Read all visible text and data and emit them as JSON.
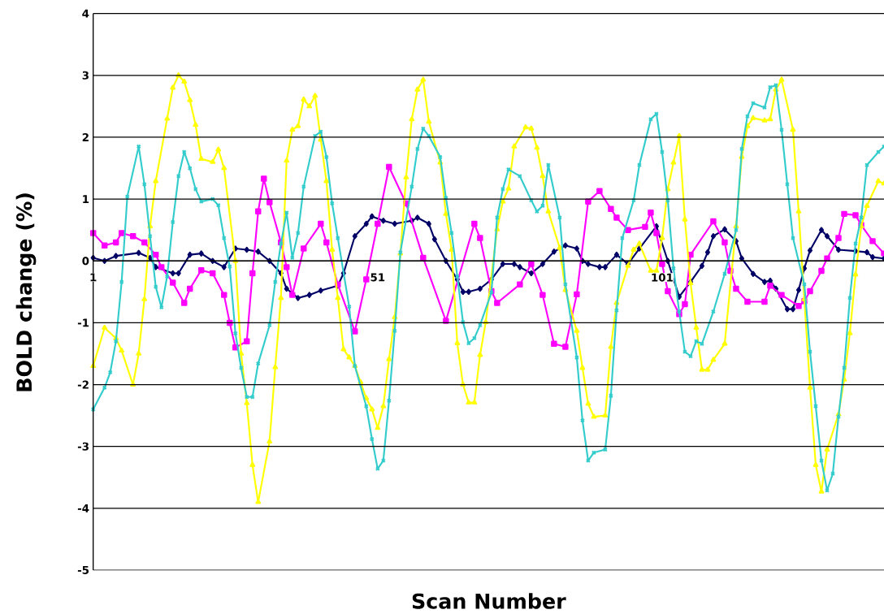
{
  "chart_data": {
    "type": "line",
    "xlabel": "Scan Number",
    "ylabel": "BOLD change (%)",
    "xlim": [
      1,
      140
    ],
    "xticks": [
      1,
      51,
      101
    ],
    "ylim": [
      -5,
      4
    ],
    "yticks": [
      -5,
      -4,
      -3,
      -2,
      -1,
      0,
      1,
      2,
      3,
      4
    ],
    "grid": "y",
    "series": [
      {
        "color": "#000066",
        "marker": "diamond",
        "x": [
          1,
          3,
          5,
          9,
          11,
          12,
          15,
          16,
          18,
          20,
          22,
          24,
          26,
          28,
          30,
          32,
          34,
          35,
          37,
          39,
          41,
          44,
          45,
          47,
          49,
          50,
          52,
          54,
          57,
          58,
          60,
          61,
          63,
          65,
          66,
          67,
          69,
          71,
          73,
          75,
          76,
          78,
          80,
          82,
          84,
          86,
          87,
          88,
          90,
          91,
          93,
          95,
          97,
          100,
          102,
          104,
          106,
          108,
          109,
          110,
          112,
          114,
          115,
          117,
          119,
          120,
          121,
          123,
          124,
          125,
          126,
          127,
          129,
          130,
          132,
          135,
          137,
          138,
          140
        ],
        "values": [
          0.05,
          0.0,
          0.08,
          0.13,
          0.05,
          -0.1,
          -0.2,
          -0.2,
          0.1,
          0.12,
          0.0,
          -0.1,
          0.2,
          0.18,
          0.15,
          0.0,
          -0.2,
          -0.45,
          -0.6,
          -0.55,
          -0.48,
          -0.4,
          -0.2,
          0.4,
          0.6,
          0.72,
          0.65,
          0.6,
          0.65,
          0.7,
          0.6,
          0.35,
          0.0,
          -0.3,
          -0.5,
          -0.5,
          -0.45,
          -0.3,
          -0.05,
          -0.05,
          -0.1,
          -0.2,
          -0.05,
          0.15,
          0.25,
          0.2,
          0.0,
          -0.05,
          -0.1,
          -0.1,
          0.1,
          -0.05,
          0.2,
          0.56,
          0.0,
          -0.58,
          -0.34,
          -0.08,
          0.14,
          0.4,
          0.51,
          0.32,
          0.04,
          -0.21,
          -0.34,
          -0.32,
          -0.45,
          -0.78,
          -0.78,
          -0.47,
          -0.12,
          0.17,
          0.5,
          0.4,
          0.18,
          0.16,
          0.14,
          0.06,
          0.04
        ]
      },
      {
        "color": "#ff00ff",
        "marker": "square",
        "x": [
          1,
          3,
          5,
          6,
          8,
          10,
          12,
          13,
          15,
          17,
          18,
          20,
          22,
          24,
          25,
          26,
          28,
          29,
          30,
          31,
          32,
          34,
          35,
          36,
          38,
          41,
          42,
          44,
          47,
          49,
          51,
          53,
          56,
          59,
          63,
          68,
          69,
          71,
          72,
          76,
          78,
          80,
          82,
          84,
          86,
          88,
          90,
          92,
          93,
          95,
          98,
          99,
          100,
          101,
          102,
          104,
          105,
          106,
          110,
          112,
          113,
          114,
          116,
          119,
          120,
          122,
          125,
          126,
          127,
          129,
          130,
          132,
          133,
          135,
          136,
          138,
          140
        ],
        "values": [
          0.45,
          0.25,
          0.3,
          0.45,
          0.4,
          0.3,
          0.1,
          -0.1,
          -0.35,
          -0.68,
          -0.45,
          -0.15,
          -0.2,
          -0.55,
          -1.0,
          -1.4,
          -1.3,
          -0.2,
          0.8,
          1.33,
          0.95,
          0.3,
          -0.1,
          -0.55,
          0.2,
          0.6,
          0.3,
          -0.38,
          -1.14,
          -0.3,
          0.6,
          1.52,
          0.93,
          0.05,
          -0.97,
          0.6,
          0.37,
          -0.49,
          -0.68,
          -0.38,
          -0.05,
          -0.55,
          -1.34,
          -1.39,
          -0.54,
          0.96,
          1.13,
          0.84,
          0.7,
          0.5,
          0.55,
          0.78,
          0.45,
          -0.05,
          -0.49,
          -0.86,
          -0.7,
          0.1,
          0.64,
          0.3,
          -0.16,
          -0.45,
          -0.66,
          -0.66,
          -0.4,
          -0.55,
          -0.73,
          -0.65,
          -0.49,
          -0.16,
          0.04,
          0.37,
          0.76,
          0.74,
          0.58,
          0.32,
          0.12
        ]
      },
      {
        "color": "#ffff00",
        "marker": "triangle",
        "x": [
          1,
          3,
          5,
          6,
          8,
          9,
          10,
          11,
          12,
          14,
          15,
          16,
          17,
          18,
          19,
          20,
          22,
          23,
          24,
          26,
          27,
          28,
          29,
          30,
          32,
          33,
          34,
          35,
          36,
          37,
          38,
          39,
          40,
          41,
          42,
          43,
          44,
          45,
          46,
          47,
          48,
          49,
          50,
          51,
          52,
          53,
          54,
          55,
          56,
          57,
          58,
          59,
          60,
          62,
          63,
          64,
          65,
          66,
          67,
          68,
          69,
          70,
          72,
          73,
          74,
          75,
          77,
          78,
          79,
          80,
          81,
          83,
          84,
          86,
          87,
          88,
          89,
          91,
          92,
          93,
          95,
          96,
          97,
          99,
          100,
          101,
          102,
          103,
          104,
          105,
          106,
          107,
          108,
          109,
          110,
          112,
          114,
          115,
          116,
          117,
          119,
          120,
          121,
          122,
          124,
          125,
          126,
          127,
          128,
          129,
          130,
          132,
          133,
          134,
          135,
          136,
          137,
          139,
          140
        ],
        "values": [
          -1.7,
          -1.08,
          -1.25,
          -1.45,
          -2.0,
          -1.5,
          -0.62,
          0.56,
          1.29,
          2.3,
          2.8,
          3.0,
          2.9,
          2.6,
          2.2,
          1.65,
          1.6,
          1.8,
          1.5,
          0.0,
          -1.5,
          -2.3,
          -3.3,
          -3.9,
          -2.92,
          -1.72,
          -0.6,
          1.62,
          2.12,
          2.18,
          2.61,
          2.5,
          2.67,
          1.96,
          1.29,
          0.18,
          -0.6,
          -1.43,
          -1.56,
          -1.7,
          -1.96,
          -2.22,
          -2.4,
          -2.7,
          -2.35,
          -1.59,
          -0.91,
          0.12,
          1.35,
          2.29,
          2.77,
          2.93,
          2.25,
          1.59,
          0.76,
          0.18,
          -1.33,
          -2.0,
          -2.29,
          -2.29,
          -1.52,
          -0.99,
          0.51,
          0.96,
          1.17,
          1.85,
          2.16,
          2.14,
          1.83,
          1.37,
          0.8,
          0.21,
          -0.47,
          -1.13,
          -1.73,
          -2.31,
          -2.52,
          -2.5,
          -1.39,
          -0.68,
          -0.08,
          0.18,
          0.28,
          -0.16,
          -0.16,
          0.37,
          1.16,
          1.59,
          2.02,
          0.67,
          -0.36,
          -1.08,
          -1.76,
          -1.76,
          -1.6,
          -1.34,
          0.56,
          1.68,
          2.18,
          2.31,
          2.27,
          2.29,
          2.77,
          2.93,
          2.12,
          0.8,
          -0.62,
          -2.05,
          -3.3,
          -3.73,
          -3.05,
          -2.48,
          -1.92,
          -1.17,
          -0.22,
          0.56,
          0.89,
          1.29,
          1.25
        ]
      },
      {
        "color": "#33cccc",
        "marker": "cross",
        "x": [
          1,
          3,
          4,
          5,
          6,
          7,
          9,
          10,
          11,
          12,
          13,
          14,
          15,
          16,
          17,
          18,
          19,
          20,
          22,
          23,
          24,
          25,
          26,
          27,
          28,
          29,
          30,
          32,
          33,
          34,
          35,
          36,
          37,
          38,
          40,
          41,
          42,
          43,
          44,
          46,
          47,
          49,
          50,
          51,
          52,
          53,
          54,
          55,
          57,
          58,
          59,
          60,
          62,
          63,
          64,
          65,
          66,
          67,
          68,
          69,
          71,
          72,
          73,
          74,
          76,
          78,
          79,
          80,
          81,
          83,
          84,
          86,
          87,
          88,
          89,
          91,
          92,
          93,
          94,
          96,
          97,
          99,
          100,
          101,
          102,
          103,
          104,
          105,
          106,
          107,
          108,
          110,
          112,
          114,
          115,
          116,
          117,
          119,
          120,
          121,
          122,
          123,
          124,
          126,
          127,
          128,
          129,
          130,
          131,
          132,
          133,
          134,
          135,
          136,
          137,
          139,
          140
        ],
        "values": [
          -2.4,
          -2.05,
          -1.8,
          -1.3,
          -0.34,
          1.04,
          1.85,
          1.24,
          0.4,
          -0.42,
          -0.75,
          -0.25,
          0.63,
          1.37,
          1.76,
          1.5,
          1.16,
          0.96,
          1.0,
          0.9,
          0.37,
          -0.09,
          -1.17,
          -1.73,
          -2.2,
          -2.2,
          -1.66,
          -1.04,
          -0.34,
          0.28,
          0.78,
          0.05,
          0.45,
          1.2,
          2.02,
          2.09,
          1.68,
          0.93,
          0.37,
          -0.74,
          -1.7,
          -2.35,
          -2.88,
          -3.36,
          -3.23,
          -2.26,
          -1.13,
          0.14,
          1.2,
          1.81,
          2.14,
          2.02,
          1.68,
          1.02,
          0.45,
          -0.25,
          -0.99,
          -1.33,
          -1.25,
          -1.04,
          -0.51,
          0.7,
          1.16,
          1.48,
          1.37,
          0.98,
          0.8,
          0.89,
          1.55,
          0.7,
          -0.38,
          -1.56,
          -2.58,
          -3.23,
          -3.1,
          -3.05,
          -2.18,
          -0.8,
          0.37,
          0.98,
          1.55,
          2.29,
          2.38,
          1.76,
          0.98,
          -0.12,
          -0.82,
          -1.47,
          -1.54,
          -1.3,
          -1.34,
          -0.82,
          -0.21,
          0.5,
          1.81,
          2.34,
          2.55,
          2.48,
          2.81,
          2.84,
          2.12,
          1.24,
          0.37,
          -0.38,
          -1.47,
          -2.35,
          -3.23,
          -3.71,
          -3.44,
          -2.52,
          -1.73,
          -0.6,
          0.28,
          0.7,
          1.55,
          1.76,
          1.85
        ]
      }
    ]
  }
}
